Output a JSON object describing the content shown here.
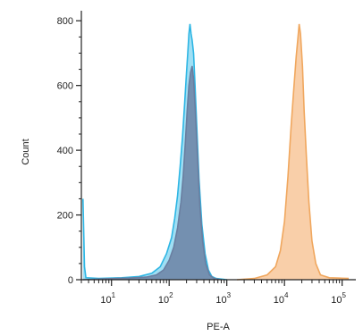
{
  "chart_data": {
    "type": "area",
    "title": "",
    "xlabel": "PE-A",
    "ylabel": "Count",
    "x_scale": "log",
    "xlim": [
      3,
      150000
    ],
    "ylim": [
      0,
      820
    ],
    "grid": false,
    "y_ticks": [
      {
        "value": 0,
        "label": "0"
      },
      {
        "value": 200,
        "label": "200"
      },
      {
        "value": 400,
        "label": "400"
      },
      {
        "value": 600,
        "label": "600"
      },
      {
        "value": 800,
        "label": "800"
      }
    ],
    "x_ticks": [
      {
        "value": 10,
        "base": "10",
        "exp": "1"
      },
      {
        "value": 100,
        "base": "10",
        "exp": "2"
      },
      {
        "value": 1000,
        "base": "10",
        "exp": "3"
      },
      {
        "value": 10000,
        "base": "10",
        "exp": "4"
      },
      {
        "value": 100000,
        "base": "10",
        "exp": "5"
      }
    ],
    "series": [
      {
        "color": "#2EB6E4",
        "fill": "#8FD9F2",
        "points": [
          [
            3.2,
            250
          ],
          [
            3.4,
            40
          ],
          [
            3.6,
            6
          ],
          [
            6,
            4
          ],
          [
            15,
            6
          ],
          [
            30,
            10
          ],
          [
            50,
            20
          ],
          [
            70,
            40
          ],
          [
            90,
            80
          ],
          [
            110,
            130
          ],
          [
            125,
            190
          ],
          [
            140,
            260
          ],
          [
            155,
            350
          ],
          [
            170,
            440
          ],
          [
            185,
            540
          ],
          [
            200,
            640
          ],
          [
            210,
            700
          ],
          [
            220,
            760
          ],
          [
            230,
            790
          ],
          [
            240,
            760
          ],
          [
            250,
            740
          ],
          [
            265,
            700
          ],
          [
            280,
            610
          ],
          [
            300,
            480
          ],
          [
            330,
            310
          ],
          [
            370,
            170
          ],
          [
            420,
            80
          ],
          [
            480,
            30
          ],
          [
            550,
            10
          ],
          [
            650,
            4
          ],
          [
            1000,
            0
          ]
        ]
      },
      {
        "color": "#6A7EA0",
        "fill": "#6F87A8",
        "points": [
          [
            3.2,
            0
          ],
          [
            8,
            3
          ],
          [
            20,
            5
          ],
          [
            40,
            8
          ],
          [
            60,
            15
          ],
          [
            80,
            30
          ],
          [
            100,
            60
          ],
          [
            120,
            100
          ],
          [
            140,
            160
          ],
          [
            160,
            240
          ],
          [
            175,
            320
          ],
          [
            190,
            420
          ],
          [
            205,
            520
          ],
          [
            220,
            600
          ],
          [
            235,
            640
          ],
          [
            250,
            660
          ],
          [
            265,
            620
          ],
          [
            285,
            520
          ],
          [
            310,
            380
          ],
          [
            340,
            230
          ],
          [
            380,
            120
          ],
          [
            430,
            50
          ],
          [
            500,
            15
          ],
          [
            600,
            4
          ],
          [
            800,
            0
          ]
        ]
      },
      {
        "color": "#F0A75E",
        "fill": "#F8C79A",
        "points": [
          [
            1500,
            0
          ],
          [
            3000,
            4
          ],
          [
            5000,
            15
          ],
          [
            7000,
            40
          ],
          [
            8500,
            90
          ],
          [
            10000,
            180
          ],
          [
            11500,
            320
          ],
          [
            13000,
            470
          ],
          [
            14500,
            590
          ],
          [
            16000,
            690
          ],
          [
            17000,
            740
          ],
          [
            18000,
            790
          ],
          [
            19000,
            760
          ],
          [
            20500,
            660
          ],
          [
            22000,
            520
          ],
          [
            24000,
            380
          ],
          [
            26500,
            240
          ],
          [
            30000,
            120
          ],
          [
            35000,
            50
          ],
          [
            42000,
            15
          ],
          [
            60000,
            6
          ],
          [
            90000,
            5
          ],
          [
            130000,
            4
          ]
        ]
      }
    ]
  }
}
